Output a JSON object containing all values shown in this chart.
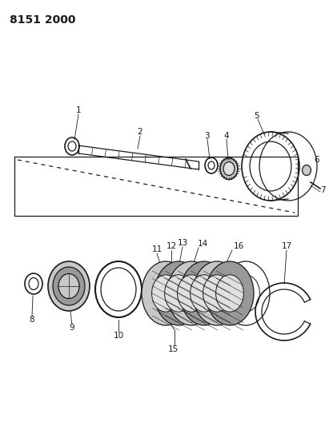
{
  "title": "8151 2000",
  "bg_color": "#ffffff",
  "line_color": "#1a1a1a",
  "title_fontsize": 10,
  "label_fontsize": 7.5,
  "gray_light": "#c8c8c8",
  "gray_mid": "#999999",
  "gray_dark": "#666666",
  "gray_fill": "#e0e0e0"
}
